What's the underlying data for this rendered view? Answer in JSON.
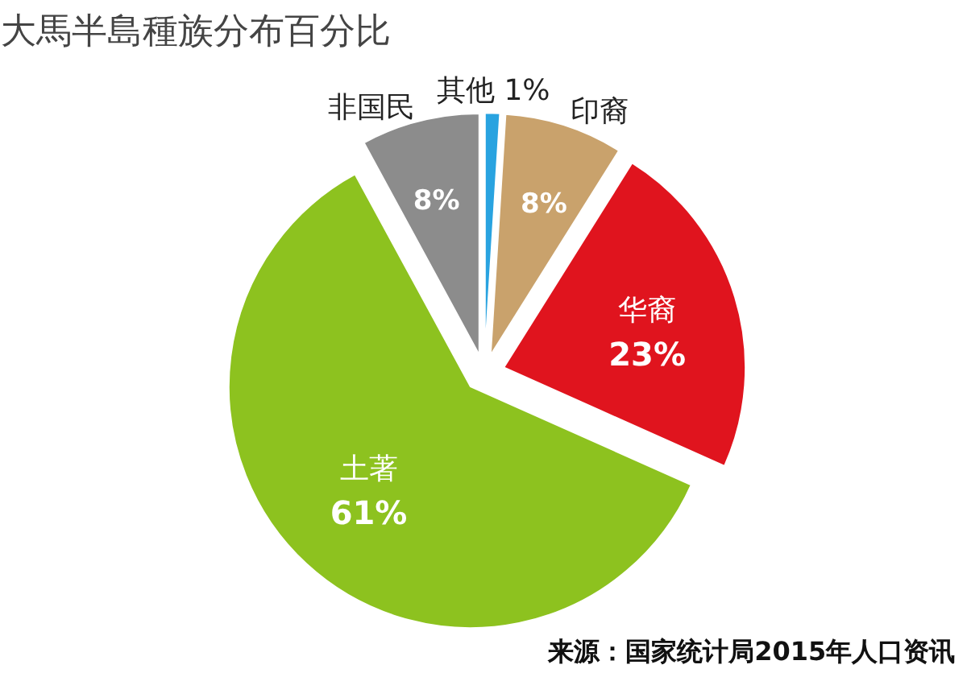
{
  "chart_data": {
    "type": "pie",
    "title": "大馬半島種族分布百分比",
    "categories": [
      "其他",
      "印裔",
      "华裔",
      "土著",
      "非国民"
    ],
    "values": [
      1,
      8,
      23,
      61,
      8
    ],
    "colors": [
      "#29a3e0",
      "#c9a26c",
      "#e0141e",
      "#8dc21f",
      "#8c8c8c"
    ],
    "value_labels": [
      "1%",
      "8%",
      "23%",
      "61%",
      "8%"
    ],
    "legend": false,
    "annotations": [
      "来源：国家统计局2015年人口资讯"
    ]
  }
}
